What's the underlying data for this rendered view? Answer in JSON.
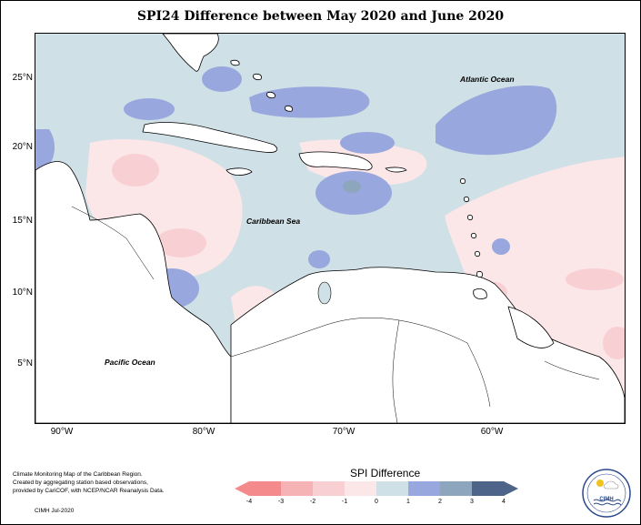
{
  "title": "SPI24 Difference between May 2020 and June 2020",
  "map": {
    "lat_labels": [
      "25°N",
      "20°N",
      "15°N",
      "10°N",
      "5°N"
    ],
    "lon_labels": [
      "90°W",
      "80°W",
      "70°W",
      "60°W"
    ],
    "water_labels": {
      "atlantic": "Atlantic Ocean",
      "caribbean": "Caribbean Sea",
      "pacific": "Pacific Ocean"
    }
  },
  "legend": {
    "title": "SPI Difference",
    "ticks": [
      "-4",
      "-3",
      "-2",
      "-1",
      "0",
      "1",
      "2",
      "3",
      "4"
    ],
    "colors": [
      "#f48a8c",
      "#f6b3b6",
      "#f8d0d3",
      "#fbe6e8",
      "#cfe0e6",
      "#98a7dd",
      "#8da6bd",
      "#4e6489"
    ]
  },
  "credit": {
    "lines": [
      "Climate Monitoring Map of the Caribbean Region.",
      "Created by aggregating station based observations,",
      "provided by CariCOF, with NCEP/NCAR Reanalysis Data."
    ],
    "stamp": "CIMH Jul-2020"
  },
  "logo": {
    "text": "CIMH",
    "icon": "cimh-logo-icon"
  }
}
